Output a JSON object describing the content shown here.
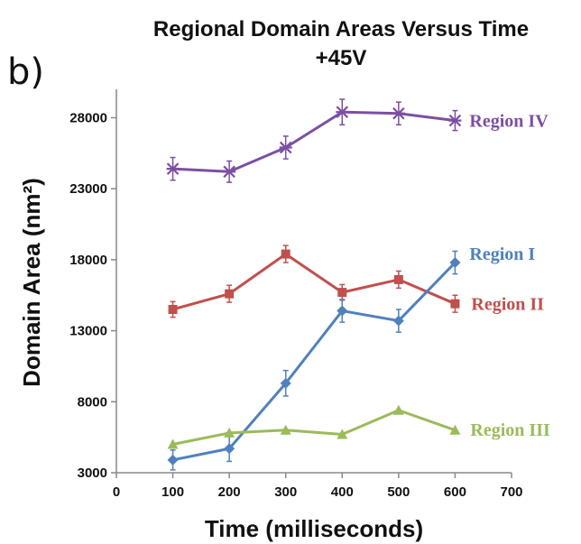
{
  "panel_label": "b)",
  "chart_data": {
    "type": "line",
    "title": "Regional Domain Areas Versus Time",
    "subtitle": "+45V",
    "xlabel": "Time (milliseconds)",
    "ylabel": "Domain Area (nm²)",
    "xlim": [
      0,
      700
    ],
    "ylim": [
      3000,
      30000
    ],
    "xticks": [
      0,
      100,
      200,
      300,
      400,
      500,
      600,
      700
    ],
    "yticks": [
      3000,
      8000,
      13000,
      18000,
      23000,
      28000
    ],
    "x": [
      100,
      200,
      300,
      400,
      500,
      600
    ],
    "grid": false,
    "legend": "inline labels at line ends",
    "series": [
      {
        "name": "Region IV",
        "color": "#7D4FA3",
        "marker": "star",
        "values": [
          24400,
          24200,
          25900,
          28400,
          28300,
          27800
        ],
        "errors": [
          800,
          750,
          800,
          900,
          800,
          700
        ]
      },
      {
        "name": "Region II",
        "color": "#C0504D",
        "marker": "square",
        "values": [
          14500,
          15600,
          18400,
          15700,
          16600,
          14900
        ],
        "errors": [
          550,
          600,
          600,
          550,
          600,
          600
        ]
      },
      {
        "name": "Region I",
        "color": "#4F81BD",
        "marker": "diamond",
        "values": [
          3900,
          4700,
          9300,
          14400,
          13700,
          17800
        ],
        "errors": [
          700,
          900,
          900,
          800,
          800,
          800
        ]
      },
      {
        "name": "Region III",
        "color": "#9BBB59",
        "marker": "triangle",
        "values": [
          5000,
          5800,
          6000,
          5700,
          7400,
          6000
        ],
        "errors": [
          0,
          0,
          0,
          0,
          0,
          0
        ]
      }
    ]
  }
}
